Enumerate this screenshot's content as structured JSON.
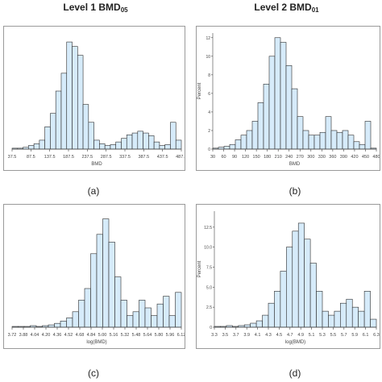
{
  "titles": {
    "left": {
      "main": "Level 1 BMD",
      "sub": "05"
    },
    "right": {
      "main": "Level 2 BMD",
      "sub": "01"
    }
  },
  "panel_labels": [
    "(a)",
    "(b)",
    "(c)",
    "(d)"
  ],
  "colors": {
    "bar_fill": "#d6ebfa",
    "bar_stroke": "#2b2b2b",
    "frame": "#9a9a9a"
  },
  "chart_data": [
    {
      "type": "bar",
      "title": "",
      "xlabel": "BMD",
      "ylabel": "",
      "ylim": [
        0,
        13
      ],
      "x_tick_labels": [
        "37.5",
        "87.5",
        "137.5",
        "187.5",
        "237.5",
        "287.5",
        "337.5",
        "387.5",
        "437.5",
        "487.5"
      ],
      "values": [
        0.1,
        0.1,
        0.2,
        0.4,
        0.6,
        1.0,
        2.5,
        4.0,
        6.5,
        8.5,
        12.0,
        11.5,
        10.5,
        5.0,
        3.0,
        1.0,
        0.6,
        0.4,
        0.5,
        0.8,
        1.2,
        1.6,
        1.8,
        2.0,
        1.8,
        1.5,
        0.8,
        0.4,
        0.5,
        3.0,
        1.0
      ],
      "grid": false
    },
    {
      "type": "bar",
      "title": "",
      "xlabel": "BMD",
      "ylabel": "Percent",
      "ylim": [
        0,
        12.5
      ],
      "y_tick_labels": [
        "0",
        "2",
        "4",
        "6",
        "8",
        "10",
        "12"
      ],
      "x_tick_labels": [
        "30",
        "60",
        "90",
        "120",
        "150",
        "180",
        "210",
        "240",
        "270",
        "300",
        "330",
        "360",
        "390",
        "420",
        "450",
        "480"
      ],
      "values": [
        0.1,
        0.2,
        0.3,
        0.5,
        1.0,
        1.5,
        2.0,
        3.0,
        5.0,
        7.0,
        10.0,
        12.0,
        11.5,
        9.0,
        6.5,
        3.5,
        2.0,
        1.5,
        1.5,
        1.8,
        3.5,
        2.0,
        1.8,
        2.0,
        1.5,
        0.8,
        0.5,
        3.0,
        0.1
      ],
      "grid": false
    },
    {
      "type": "bar",
      "title": "",
      "xlabel": "log(BMD)",
      "ylabel": "",
      "ylim": [
        0,
        15
      ],
      "x_tick_labels": [
        "3.72",
        "3.88",
        "4.04",
        "4.20",
        "4.36",
        "4.52",
        "4.68",
        "4.84",
        "5.00",
        "5.16",
        "5.32",
        "5.48",
        "5.64",
        "5.80",
        "5.96",
        "6.12"
      ],
      "values": [
        0.1,
        0.1,
        0.1,
        0.2,
        0.1,
        0.2,
        0.3,
        0.5,
        0.8,
        1.2,
        2.0,
        3.5,
        5.0,
        9.5,
        12.0,
        14.0,
        11.0,
        6.5,
        3.5,
        1.5,
        2.0,
        3.5,
        2.5,
        1.5,
        3.0,
        4.0,
        1.5,
        4.5
      ],
      "grid": false
    },
    {
      "type": "bar",
      "title": "",
      "xlabel": "log(BMD)",
      "ylabel": "Percent",
      "ylim": [
        0,
        14.5
      ],
      "y_tick_labels": [
        "0",
        "2.5",
        "5.0",
        "7.5",
        "10.0",
        "12.5"
      ],
      "x_tick_labels": [
        "3.3",
        "3.5",
        "3.7",
        "3.9",
        "4.1",
        "4.3",
        "4.5",
        "4.7",
        "4.9",
        "5.1",
        "5.3",
        "5.5",
        "5.7",
        "5.9",
        "6.1",
        "6.3"
      ],
      "values": [
        0.1,
        0.1,
        0.2,
        0.1,
        0.2,
        0.3,
        0.5,
        0.8,
        1.5,
        3.0,
        4.5,
        7.0,
        10.0,
        12.0,
        13.0,
        11.0,
        8.0,
        4.5,
        2.0,
        1.5,
        2.0,
        3.0,
        3.5,
        2.5,
        2.0,
        4.5,
        1.0
      ],
      "grid": false
    }
  ]
}
